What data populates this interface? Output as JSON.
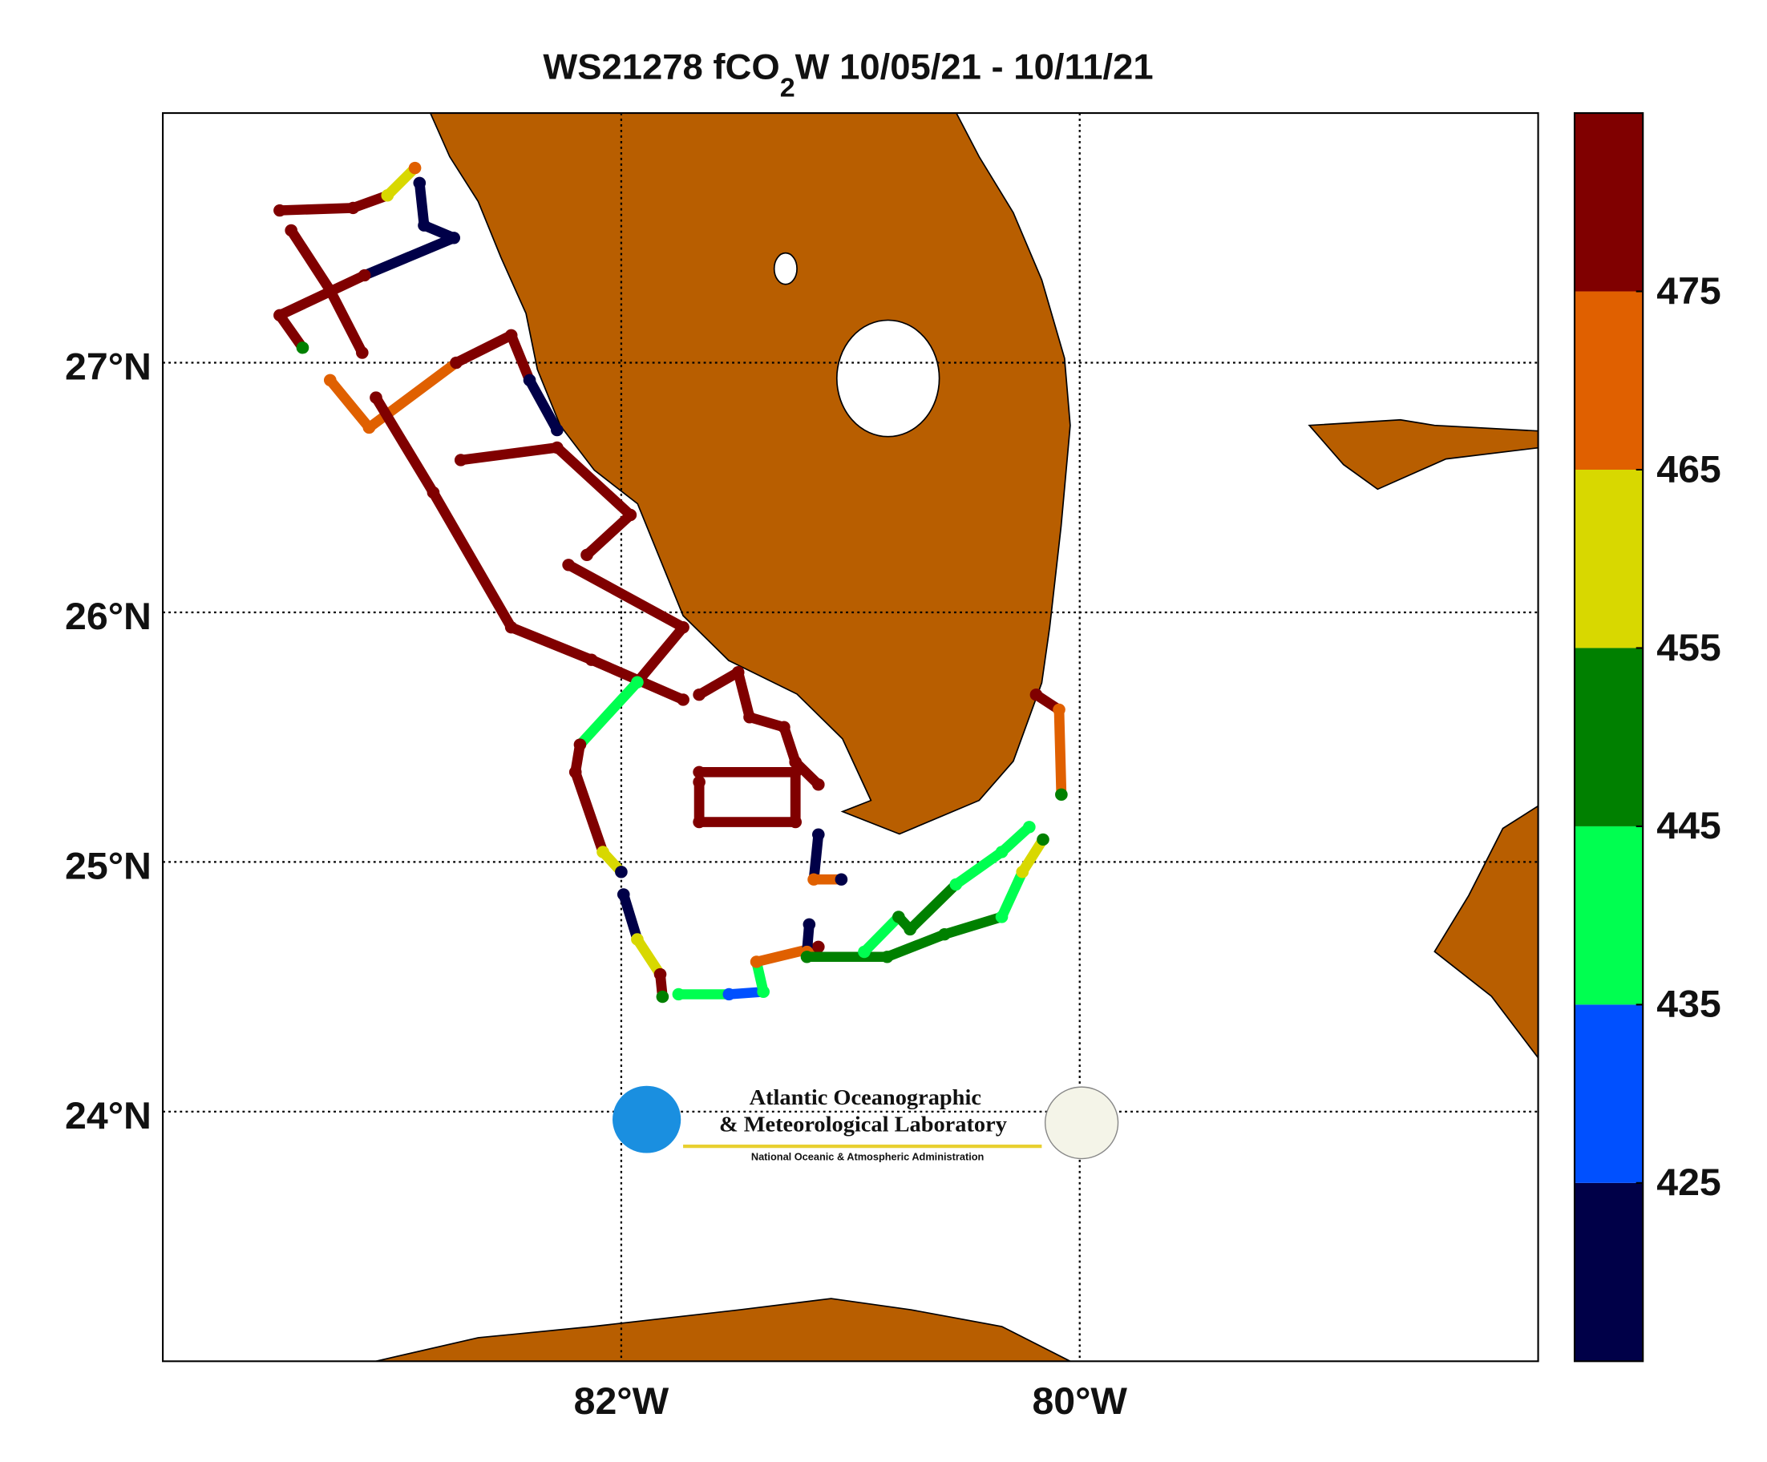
{
  "chart_data": {
    "type": "track-map",
    "title_parts": [
      "WS21278 fCO",
      "2",
      "W 10/05/21 - 10/11/21"
    ],
    "xlim": [
      -84,
      -78
    ],
    "ylim": [
      23,
      28
    ],
    "xticks": [
      {
        "value": -82,
        "label": "82°W"
      },
      {
        "value": -80,
        "label": "80°W"
      }
    ],
    "yticks": [
      {
        "value": 24,
        "label": "24°N"
      },
      {
        "value": 25,
        "label": "25°N"
      },
      {
        "value": 26,
        "label": "26°N"
      },
      {
        "value": 27,
        "label": "27°N"
      }
    ],
    "grid": true,
    "clim": [
      415,
      485
    ],
    "cticks": [
      425,
      435,
      445,
      455,
      465,
      475
    ],
    "colors": [
      "#000048",
      "#0050ff",
      "#00ff50",
      "#008000",
      "#d8d800",
      "#e06000",
      "#800000"
    ],
    "tracks": [
      {
        "x": [
          -83.49,
          -83.17,
          -83.02,
          -82.9
        ],
        "y": [
          27.61,
          27.62,
          27.67,
          27.78
        ],
        "values": [
          478,
          478,
          455,
          470
        ]
      },
      {
        "x": [
          -82.88,
          -82.86,
          -82.73,
          -83.12,
          -83.49,
          -83.39
        ],
        "y": [
          27.72,
          27.55,
          27.5,
          27.35,
          27.19,
          27.06
        ],
        "values": [
          420,
          420,
          420,
          478,
          478,
          450
        ]
      },
      {
        "x": [
          -83.44,
          -83.27,
          -83.13
        ],
        "y": [
          27.53,
          27.29,
          27.04
        ],
        "values": [
          478,
          478,
          478
        ]
      },
      {
        "x": [
          -83.27,
          -83.1,
          -82.72,
          -82.48,
          -82.4,
          -82.28
        ],
        "y": [
          26.93,
          26.74,
          27.0,
          27.11,
          26.93,
          26.73
        ],
        "values": [
          470,
          470,
          478,
          478,
          420,
          420
        ]
      },
      {
        "x": [
          -83.07,
          -82.82,
          -82.48,
          -82.13,
          -81.73
        ],
        "y": [
          26.86,
          26.48,
          25.94,
          25.81,
          25.65
        ],
        "values": [
          478,
          478,
          478,
          478,
          478
        ]
      },
      {
        "x": [
          -82.7,
          -82.28,
          -81.96,
          -82.15
        ],
        "y": [
          26.61,
          26.66,
          26.39,
          26.23
        ],
        "values": [
          478,
          478,
          478,
          478
        ]
      },
      {
        "x": [
          -82.23,
          -81.73,
          -81.93,
          -82.18,
          -82.2,
          -82.08,
          -82.0
        ],
        "y": [
          26.19,
          25.94,
          25.72,
          25.47,
          25.36,
          25.04,
          24.96
        ],
        "values": [
          478,
          478,
          440,
          478,
          478,
          455,
          420
        ]
      },
      {
        "x": [
          -81.99,
          -81.93,
          -81.83,
          -81.82
        ],
        "y": [
          24.87,
          24.69,
          24.55,
          24.46
        ],
        "values": [
          420,
          460,
          478,
          445
        ]
      },
      {
        "x": [
          -81.75,
          -81.53,
          -81.38,
          -81.41,
          -81.14
        ],
        "y": [
          24.47,
          24.47,
          24.48,
          24.6,
          24.66
        ],
        "values": [
          440,
          430,
          440,
          470,
          478
        ]
      },
      {
        "x": [
          -81.66,
          -81.24,
          -81.24,
          -81.66,
          -81.66
        ],
        "y": [
          25.36,
          25.36,
          25.16,
          25.16,
          25.32
        ],
        "values": [
          478,
          478,
          478,
          478,
          478
        ]
      },
      {
        "x": [
          -81.66,
          -81.49,
          -81.44,
          -81.29,
          -81.24,
          -81.14
        ],
        "y": [
          25.67,
          25.76,
          25.58,
          25.54,
          25.4,
          25.31
        ],
        "values": [
          478,
          478,
          478,
          478,
          478,
          478
        ]
      },
      {
        "x": [
          -81.14,
          -81.16,
          -81.04
        ],
        "y": [
          25.11,
          24.93,
          24.93
        ],
        "values": [
          420,
          465,
          420
        ]
      },
      {
        "x": [
          -81.18,
          -81.19
        ],
        "y": [
          24.75,
          24.64
        ],
        "values": [
          420,
          470
        ]
      },
      {
        "x": [
          -81.19,
          -80.84,
          -80.59,
          -80.34,
          -80.25,
          -80.16
        ],
        "y": [
          24.62,
          24.62,
          24.71,
          24.78,
          24.96,
          25.09
        ],
        "values": [
          450,
          450,
          450,
          440,
          460,
          450
        ]
      },
      {
        "x": [
          -80.94,
          -80.79,
          -80.74,
          -80.54,
          -80.34,
          -80.22
        ],
        "y": [
          24.64,
          24.78,
          24.73,
          24.91,
          25.04,
          25.14
        ],
        "values": [
          440,
          445,
          445,
          440,
          440,
          435
        ]
      },
      {
        "x": [
          -80.19,
          -80.09,
          -80.08
        ],
        "y": [
          25.67,
          25.61,
          25.27
        ],
        "values": [
          478,
          470,
          450
        ]
      }
    ],
    "logo": {
      "line1": "Atlantic Oceanographic",
      "line2": "& Meteorological Laboratory",
      "line3": "National Oceanic & Atmospheric Administration"
    }
  }
}
